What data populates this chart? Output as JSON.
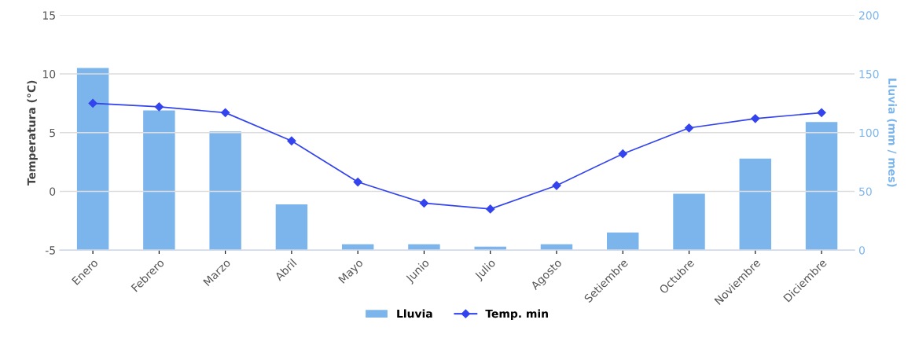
{
  "chart_data": {
    "type": "bar",
    "categories": [
      "Enero",
      "Febrero",
      "Marzo",
      "Abril",
      "Mayo",
      "Junio",
      "Julio",
      "Agosto",
      "Setiembre",
      "Octubre",
      "Noviembre",
      "Diciembre"
    ],
    "ylabel": "Temperatura (°C)",
    "y2label": "Lluvia (mm / mes)",
    "ylim": [
      -5,
      15
    ],
    "yticks": [
      -5,
      0,
      5,
      10,
      15
    ],
    "y2lim": [
      0,
      200
    ],
    "y2ticks": [
      0,
      50,
      100,
      150,
      200
    ],
    "grid": "y",
    "legend": "bottom",
    "series": [
      {
        "name": "Lluvia",
        "axis": "y2",
        "color": "#7cb5ec",
        "values": [
          155,
          119,
          101,
          39,
          5,
          5,
          3,
          5,
          15,
          48,
          78,
          109
        ]
      },
      {
        "name": "Temp. min",
        "type": "line",
        "axis": "y",
        "color": "#3344ee",
        "marker": "diamond",
        "values": [
          7.5,
          7.2,
          6.7,
          4.3,
          0.8,
          -1.0,
          -1.5,
          0.5,
          3.2,
          5.4,
          6.2,
          6.7
        ]
      }
    ]
  }
}
